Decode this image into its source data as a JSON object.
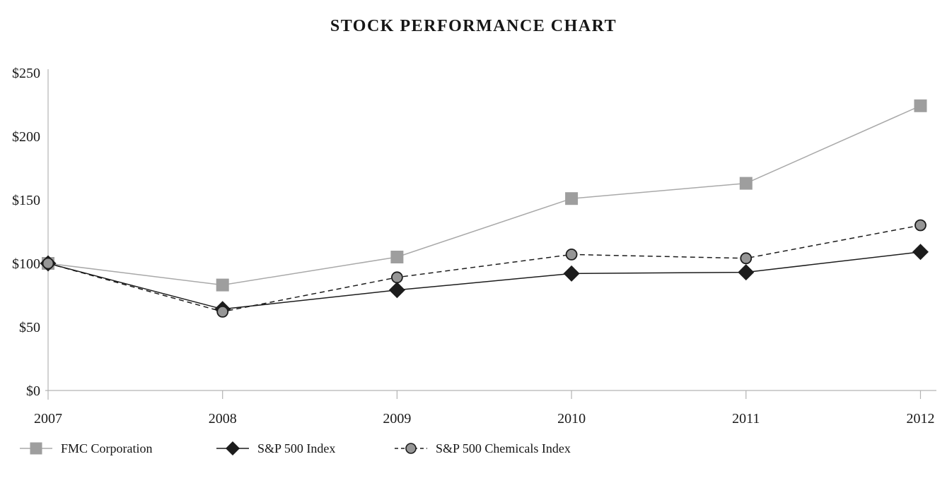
{
  "chart_data": {
    "type": "line",
    "title": "STOCK PERFORMANCE CHART",
    "x_categories": [
      "2007",
      "2008",
      "2009",
      "2010",
      "2011",
      "2012"
    ],
    "y_tick_labels": [
      "$250",
      "$200",
      "$150",
      "$100",
      "$50",
      "$0"
    ],
    "y_axis_range": [
      0,
      250
    ],
    "y_tick_step": 50,
    "grid": false,
    "legend_position": "bottom-left",
    "axis_color": "#b3b3b3",
    "text_color": "#1a1a1a",
    "series": [
      {
        "name": "FMC Corporation",
        "marker": "square",
        "color": "#9e9e9e",
        "line_color": "#a9a9a9",
        "line_style": "solid",
        "values": [
          100,
          83,
          105,
          151,
          163,
          224
        ]
      },
      {
        "name": "S&P 500 Index",
        "marker": "diamond",
        "color": "#1c1c1c",
        "line_color": "#1c1c1c",
        "line_style": "solid",
        "values": [
          100,
          64,
          79,
          92,
          93,
          109
        ]
      },
      {
        "name": "S&P 500 Chemicals Index",
        "marker": "circle",
        "color": "#969696",
        "line_color": "#1c1c1c",
        "line_style": "dashed",
        "values": [
          100,
          62,
          89,
          107,
          104,
          130
        ]
      }
    ]
  }
}
